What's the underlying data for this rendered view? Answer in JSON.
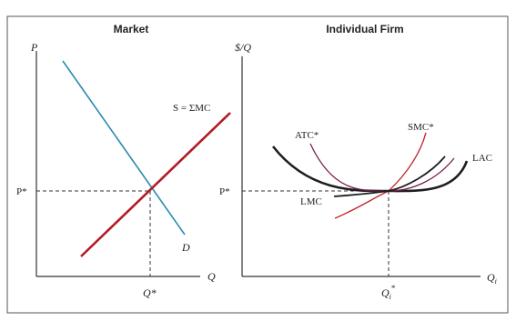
{
  "market": {
    "title": "Market",
    "y_axis_label": "P",
    "x_axis_label": "Q",
    "price_label": "P*",
    "quantity_label": "Q*",
    "supply_label": "S = ΣMC",
    "demand_label": "D"
  },
  "firm": {
    "title": "Individual Firm",
    "y_axis_label": "$/Q",
    "x_axis_label": "Q",
    "x_axis_subscript": "i",
    "price_label": "P*",
    "quantity_label": "Q",
    "quantity_subscript": "i",
    "quantity_superscript": "*",
    "atc_label": "ATC*",
    "smc_label": "SMC*",
    "lac_label": "LAC",
    "lmc_label": "LMC"
  },
  "colors": {
    "supply": "#b01c24",
    "demand": "#2b8bb0",
    "lac": "#1e1e1e",
    "lmc": "#1e1e1e",
    "atc": "#7a1f4e",
    "smc": "#c0282e"
  }
}
